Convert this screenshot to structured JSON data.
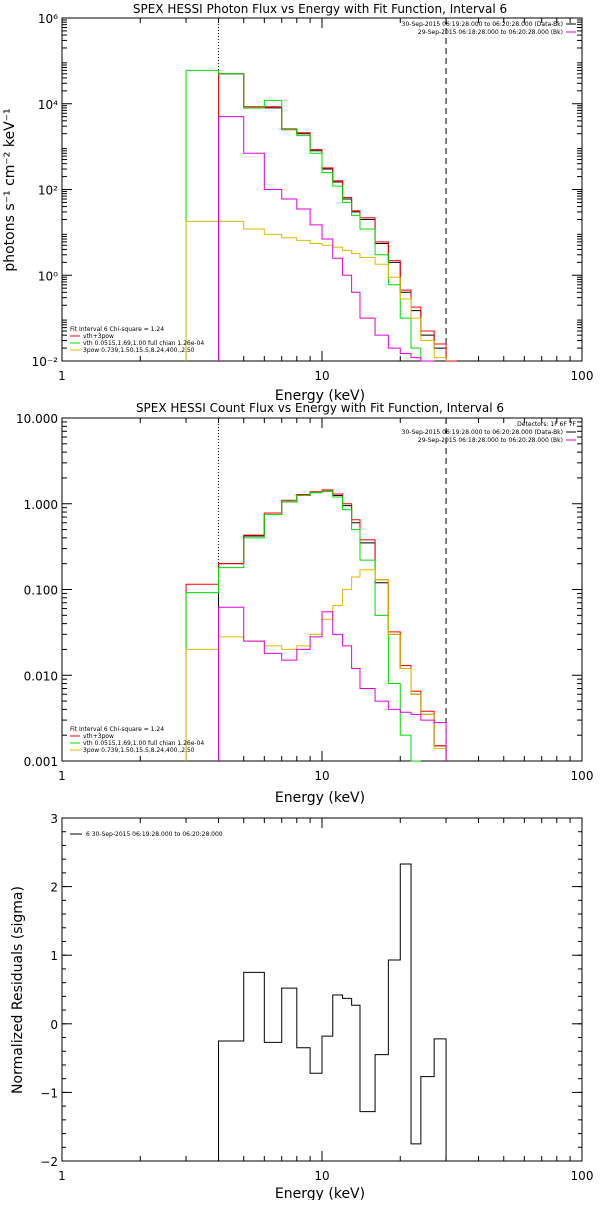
{
  "chart_data": [
    {
      "type": "line",
      "title": "SPEX HESSI Photon Flux vs Energy with Fit Function, Interval 6",
      "xlabel": "Energy (keV)",
      "ylabel": "photons s⁻¹ cm⁻² keV⁻¹",
      "xscale": "log",
      "yscale": "log",
      "xlim": [
        1,
        100
      ],
      "ylim": [
        0.01,
        1000000
      ],
      "xticks": [
        1,
        10,
        100
      ],
      "xtick_labels": [
        "1",
        "10",
        "100"
      ],
      "yticks": [
        0.01,
        1,
        100,
        10000,
        1000000
      ],
      "ytick_labels": [
        "10⁻²",
        "10⁰",
        "10²",
        "10⁴",
        "10⁶"
      ],
      "vlines": [
        {
          "x": 4.0,
          "style": "dotted"
        },
        {
          "x": 30.0,
          "style": "dashed"
        }
      ],
      "top_legend": [
        {
          "text": "30-Sep-2015 06:19:28.000 to 06:20:28.000 (Data-Bk)",
          "color": "#000000"
        },
        {
          "text": "29-Sep-2015 06:18:28.000 to 06:20:28.000 (Bk)",
          "color": "#dd00dd"
        }
      ],
      "fit_legend_title": "Fit Interval 6    Chi-square = 1.24",
      "fit_legend": [
        {
          "text": "vth+3pow",
          "color": "#ff0000"
        },
        {
          "text": "vth 0.0515,1.69,1.00  full chian 1.26e-04",
          "color": "#00dd00"
        },
        {
          "text": "3pow 0.739,1.50,15.5,8.24,400.,2.50",
          "color": "#ddbb00"
        }
      ],
      "bin_edges": [
        3.0,
        4.0,
        5.0,
        6.0,
        7.0,
        8.0,
        9.0,
        10.0,
        11.0,
        12.0,
        13.0,
        14.0,
        16.0,
        18.0,
        20.0,
        22.0,
        24.0,
        27.0,
        30.0,
        33.0
      ],
      "series": [
        {
          "name": "Data-Bk",
          "color": "#000000",
          "start": 1,
          "values": [
            50000,
            8000,
            8000,
            2500,
            2000,
            800,
            300,
            150,
            60,
            30,
            20,
            5.5,
            2.0,
            0.4,
            0.15,
            0.04,
            0.02
          ]
        },
        {
          "name": "vth+3pow",
          "color": "#ff0000",
          "start": 1,
          "values": [
            50000,
            8500,
            8500,
            2600,
            2100,
            850,
            320,
            160,
            65,
            32,
            22,
            6.0,
            2.2,
            0.45,
            0.18,
            0.05,
            0.025,
            0.01
          ]
        },
        {
          "name": "vth",
          "color": "#00dd00",
          "start": 0,
          "values": [
            60000,
            50000,
            8000,
            12000,
            2500,
            1800,
            700,
            250,
            120,
            50,
            25,
            12,
            3.0,
            0.6,
            0.1,
            0.02,
            0.008
          ]
        },
        {
          "name": "3pow",
          "color": "#ddbb00",
          "start": 0,
          "values": [
            18,
            18,
            12,
            9,
            7.5,
            6.5,
            5.5,
            5,
            4.5,
            3.8,
            3.2,
            2.6,
            1.8,
            0.9,
            0.28,
            0.1,
            0.03,
            0.012
          ]
        },
        {
          "name": "Bk",
          "color": "#dd00dd",
          "start": 1,
          "values": [
            5000,
            700,
            100,
            60,
            35,
            15,
            7,
            2.5,
            1.0,
            0.4,
            0.1,
            0.04,
            0.02,
            0.015,
            0.012,
            0.01
          ]
        }
      ]
    },
    {
      "type": "line",
      "title": "SPEX HESSI Count Flux vs Energy with Fit Function, Interval 6",
      "xlabel": "Energy (keV)",
      "ylabel": "",
      "xscale": "log",
      "yscale": "log",
      "xlim": [
        1,
        100
      ],
      "ylim": [
        0.001,
        10
      ],
      "xticks": [
        1,
        10,
        100
      ],
      "xtick_labels": [
        "1",
        "10",
        "100"
      ],
      "yticks": [
        0.001,
        0.01,
        0.1,
        1,
        10
      ],
      "ytick_labels": [
        "0.001",
        "0.010",
        "0.100",
        "1.000",
        "10.000"
      ],
      "vlines": [
        {
          "x": 4.0,
          "style": "dotted"
        },
        {
          "x": 30.0,
          "style": "dashed"
        }
      ],
      "top_legend_title": "Detectors: 1F 6F 7F",
      "top_legend": [
        {
          "text": "30-Sep-2015 06:19:28.000 to 06:20:28.000 (Data-Bk)",
          "color": "#000000"
        },
        {
          "text": "29-Sep-2015 06:18:28.000 to 06:20:28.000 (Bk)",
          "color": "#dd00dd"
        }
      ],
      "fit_legend_title": "Fit Interval 6    Chi-square = 1.24",
      "fit_legend": [
        {
          "text": "vth+3pow",
          "color": "#ff0000"
        },
        {
          "text": "vth 0.0515,1.69,1.00  full chian 1.26e-04",
          "color": "#00dd00"
        },
        {
          "text": "3pow 0.739,1.50,15.5,8.24,400.,2.50",
          "color": "#ddbb00"
        }
      ],
      "bin_edges": [
        3.0,
        4.0,
        5.0,
        6.0,
        7.0,
        8.0,
        9.0,
        10.0,
        11.0,
        12.0,
        13.0,
        14.0,
        16.0,
        18.0,
        20.0,
        22.0,
        24.0,
        27.0,
        30.0,
        33.0
      ],
      "series": [
        {
          "name": "Data-Bk",
          "color": "#000000",
          "start": 1,
          "values": [
            0.2,
            0.42,
            0.75,
            1.05,
            1.25,
            1.35,
            1.4,
            1.25,
            0.95,
            0.6,
            0.35,
            0.12,
            0.03,
            0.012,
            0.006,
            0.0035,
            0.0015
          ]
        },
        {
          "name": "vth+3pow",
          "color": "#ff0000",
          "start": 0,
          "values": [
            0.115,
            0.2,
            0.43,
            0.78,
            1.1,
            1.28,
            1.38,
            1.45,
            1.3,
            1.0,
            0.65,
            0.38,
            0.13,
            0.032,
            0.013,
            0.0065,
            0.0038,
            0.0015
          ]
        },
        {
          "name": "vth",
          "color": "#00dd00",
          "start": 0,
          "values": [
            0.092,
            0.18,
            0.4,
            0.75,
            1.05,
            1.25,
            1.35,
            1.4,
            1.2,
            0.85,
            0.5,
            0.22,
            0.05,
            0.008,
            0.002,
            0.0008
          ]
        },
        {
          "name": "3pow",
          "color": "#ddbb00",
          "start": 0,
          "values": [
            0.02,
            0.028,
            0.025,
            0.022,
            0.02,
            0.022,
            0.03,
            0.045,
            0.065,
            0.1,
            0.14,
            0.17,
            0.13,
            0.03,
            0.012,
            0.006,
            0.0035,
            0.0014
          ]
        },
        {
          "name": "Bk",
          "color": "#dd00dd",
          "start": 1,
          "values": [
            0.062,
            0.025,
            0.018,
            0.015,
            0.02,
            0.028,
            0.055,
            0.03,
            0.022,
            0.012,
            0.007,
            0.005,
            0.004,
            0.0037,
            0.0035,
            0.003,
            0.0028
          ]
        }
      ]
    },
    {
      "type": "line",
      "title": "",
      "xlabel": "Energy (keV)",
      "ylabel": "Normalized Residuals (sigma)",
      "xscale": "log",
      "yscale": "linear",
      "xlim": [
        1,
        100
      ],
      "ylim": [
        -2,
        3
      ],
      "xticks": [
        1,
        10,
        100
      ],
      "xtick_labels": [
        "1",
        "10",
        "100"
      ],
      "yticks": [
        -2,
        -1,
        0,
        1,
        2,
        3
      ],
      "ytick_labels": [
        "−2",
        "−1",
        "0",
        "1",
        "2",
        "3"
      ],
      "top_legend": [
        {
          "text": "6  30-Sep-2015 06:19:28.000 to 06:20:28.000",
          "color": "#000000"
        }
      ],
      "bin_edges": [
        4.0,
        5.0,
        6.0,
        7.0,
        8.0,
        9.0,
        10.0,
        11.0,
        12.0,
        13.0,
        14.0,
        16.0,
        18.0,
        20.0,
        22.0,
        24.0,
        27.0,
        30.0
      ],
      "series": [
        {
          "name": "residuals",
          "color": "#000000",
          "start": 0,
          "values": [
            -0.25,
            0.75,
            -0.27,
            0.52,
            -0.35,
            -0.72,
            -0.18,
            0.42,
            0.37,
            0.27,
            -1.28,
            -0.45,
            0.93,
            2.33,
            -1.75,
            -0.77,
            -0.22
          ]
        }
      ]
    }
  ]
}
